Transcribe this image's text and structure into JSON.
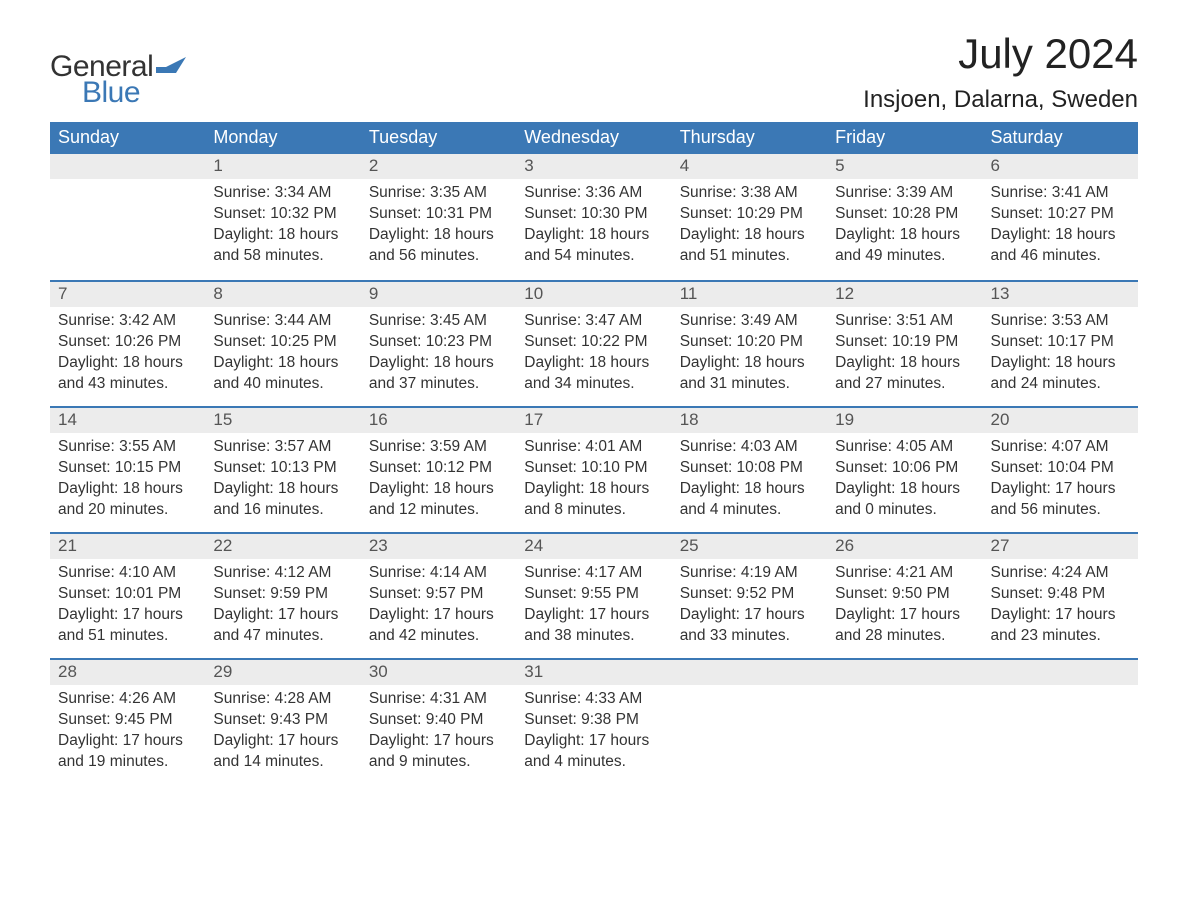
{
  "logo": {
    "text_general": "General",
    "text_blue": "Blue",
    "flag_color": "#3b78b5"
  },
  "title": "July 2024",
  "location": "Insjoen, Dalarna, Sweden",
  "colors": {
    "header_bg": "#3b78b5",
    "header_text": "#ffffff",
    "daynum_bg": "#ececec",
    "daynum_text": "#555555",
    "body_text": "#333333",
    "week_divider": "#3b78b5",
    "page_bg": "#ffffff"
  },
  "typography": {
    "title_fontsize": 42,
    "location_fontsize": 24,
    "header_fontsize": 18,
    "daynum_fontsize": 17,
    "body_fontsize": 15.5,
    "logo_fontsize": 30
  },
  "day_headers": [
    "Sunday",
    "Monday",
    "Tuesday",
    "Wednesday",
    "Thursday",
    "Friday",
    "Saturday"
  ],
  "weeks": [
    [
      {
        "num": "",
        "sunrise": "",
        "sunset": "",
        "daylight": ""
      },
      {
        "num": "1",
        "sunrise": "Sunrise: 3:34 AM",
        "sunset": "Sunset: 10:32 PM",
        "daylight": "Daylight: 18 hours and 58 minutes."
      },
      {
        "num": "2",
        "sunrise": "Sunrise: 3:35 AM",
        "sunset": "Sunset: 10:31 PM",
        "daylight": "Daylight: 18 hours and 56 minutes."
      },
      {
        "num": "3",
        "sunrise": "Sunrise: 3:36 AM",
        "sunset": "Sunset: 10:30 PM",
        "daylight": "Daylight: 18 hours and 54 minutes."
      },
      {
        "num": "4",
        "sunrise": "Sunrise: 3:38 AM",
        "sunset": "Sunset: 10:29 PM",
        "daylight": "Daylight: 18 hours and 51 minutes."
      },
      {
        "num": "5",
        "sunrise": "Sunrise: 3:39 AM",
        "sunset": "Sunset: 10:28 PM",
        "daylight": "Daylight: 18 hours and 49 minutes."
      },
      {
        "num": "6",
        "sunrise": "Sunrise: 3:41 AM",
        "sunset": "Sunset: 10:27 PM",
        "daylight": "Daylight: 18 hours and 46 minutes."
      }
    ],
    [
      {
        "num": "7",
        "sunrise": "Sunrise: 3:42 AM",
        "sunset": "Sunset: 10:26 PM",
        "daylight": "Daylight: 18 hours and 43 minutes."
      },
      {
        "num": "8",
        "sunrise": "Sunrise: 3:44 AM",
        "sunset": "Sunset: 10:25 PM",
        "daylight": "Daylight: 18 hours and 40 minutes."
      },
      {
        "num": "9",
        "sunrise": "Sunrise: 3:45 AM",
        "sunset": "Sunset: 10:23 PM",
        "daylight": "Daylight: 18 hours and 37 minutes."
      },
      {
        "num": "10",
        "sunrise": "Sunrise: 3:47 AM",
        "sunset": "Sunset: 10:22 PM",
        "daylight": "Daylight: 18 hours and 34 minutes."
      },
      {
        "num": "11",
        "sunrise": "Sunrise: 3:49 AM",
        "sunset": "Sunset: 10:20 PM",
        "daylight": "Daylight: 18 hours and 31 minutes."
      },
      {
        "num": "12",
        "sunrise": "Sunrise: 3:51 AM",
        "sunset": "Sunset: 10:19 PM",
        "daylight": "Daylight: 18 hours and 27 minutes."
      },
      {
        "num": "13",
        "sunrise": "Sunrise: 3:53 AM",
        "sunset": "Sunset: 10:17 PM",
        "daylight": "Daylight: 18 hours and 24 minutes."
      }
    ],
    [
      {
        "num": "14",
        "sunrise": "Sunrise: 3:55 AM",
        "sunset": "Sunset: 10:15 PM",
        "daylight": "Daylight: 18 hours and 20 minutes."
      },
      {
        "num": "15",
        "sunrise": "Sunrise: 3:57 AM",
        "sunset": "Sunset: 10:13 PM",
        "daylight": "Daylight: 18 hours and 16 minutes."
      },
      {
        "num": "16",
        "sunrise": "Sunrise: 3:59 AM",
        "sunset": "Sunset: 10:12 PM",
        "daylight": "Daylight: 18 hours and 12 minutes."
      },
      {
        "num": "17",
        "sunrise": "Sunrise: 4:01 AM",
        "sunset": "Sunset: 10:10 PM",
        "daylight": "Daylight: 18 hours and 8 minutes."
      },
      {
        "num": "18",
        "sunrise": "Sunrise: 4:03 AM",
        "sunset": "Sunset: 10:08 PM",
        "daylight": "Daylight: 18 hours and 4 minutes."
      },
      {
        "num": "19",
        "sunrise": "Sunrise: 4:05 AM",
        "sunset": "Sunset: 10:06 PM",
        "daylight": "Daylight: 18 hours and 0 minutes."
      },
      {
        "num": "20",
        "sunrise": "Sunrise: 4:07 AM",
        "sunset": "Sunset: 10:04 PM",
        "daylight": "Daylight: 17 hours and 56 minutes."
      }
    ],
    [
      {
        "num": "21",
        "sunrise": "Sunrise: 4:10 AM",
        "sunset": "Sunset: 10:01 PM",
        "daylight": "Daylight: 17 hours and 51 minutes."
      },
      {
        "num": "22",
        "sunrise": "Sunrise: 4:12 AM",
        "sunset": "Sunset: 9:59 PM",
        "daylight": "Daylight: 17 hours and 47 minutes."
      },
      {
        "num": "23",
        "sunrise": "Sunrise: 4:14 AM",
        "sunset": "Sunset: 9:57 PM",
        "daylight": "Daylight: 17 hours and 42 minutes."
      },
      {
        "num": "24",
        "sunrise": "Sunrise: 4:17 AM",
        "sunset": "Sunset: 9:55 PM",
        "daylight": "Daylight: 17 hours and 38 minutes."
      },
      {
        "num": "25",
        "sunrise": "Sunrise: 4:19 AM",
        "sunset": "Sunset: 9:52 PM",
        "daylight": "Daylight: 17 hours and 33 minutes."
      },
      {
        "num": "26",
        "sunrise": "Sunrise: 4:21 AM",
        "sunset": "Sunset: 9:50 PM",
        "daylight": "Daylight: 17 hours and 28 minutes."
      },
      {
        "num": "27",
        "sunrise": "Sunrise: 4:24 AM",
        "sunset": "Sunset: 9:48 PM",
        "daylight": "Daylight: 17 hours and 23 minutes."
      }
    ],
    [
      {
        "num": "28",
        "sunrise": "Sunrise: 4:26 AM",
        "sunset": "Sunset: 9:45 PM",
        "daylight": "Daylight: 17 hours and 19 minutes."
      },
      {
        "num": "29",
        "sunrise": "Sunrise: 4:28 AM",
        "sunset": "Sunset: 9:43 PM",
        "daylight": "Daylight: 17 hours and 14 minutes."
      },
      {
        "num": "30",
        "sunrise": "Sunrise: 4:31 AM",
        "sunset": "Sunset: 9:40 PM",
        "daylight": "Daylight: 17 hours and 9 minutes."
      },
      {
        "num": "31",
        "sunrise": "Sunrise: 4:33 AM",
        "sunset": "Sunset: 9:38 PM",
        "daylight": "Daylight: 17 hours and 4 minutes."
      },
      {
        "num": "",
        "sunrise": "",
        "sunset": "",
        "daylight": ""
      },
      {
        "num": "",
        "sunrise": "",
        "sunset": "",
        "daylight": ""
      },
      {
        "num": "",
        "sunrise": "",
        "sunset": "",
        "daylight": ""
      }
    ]
  ]
}
